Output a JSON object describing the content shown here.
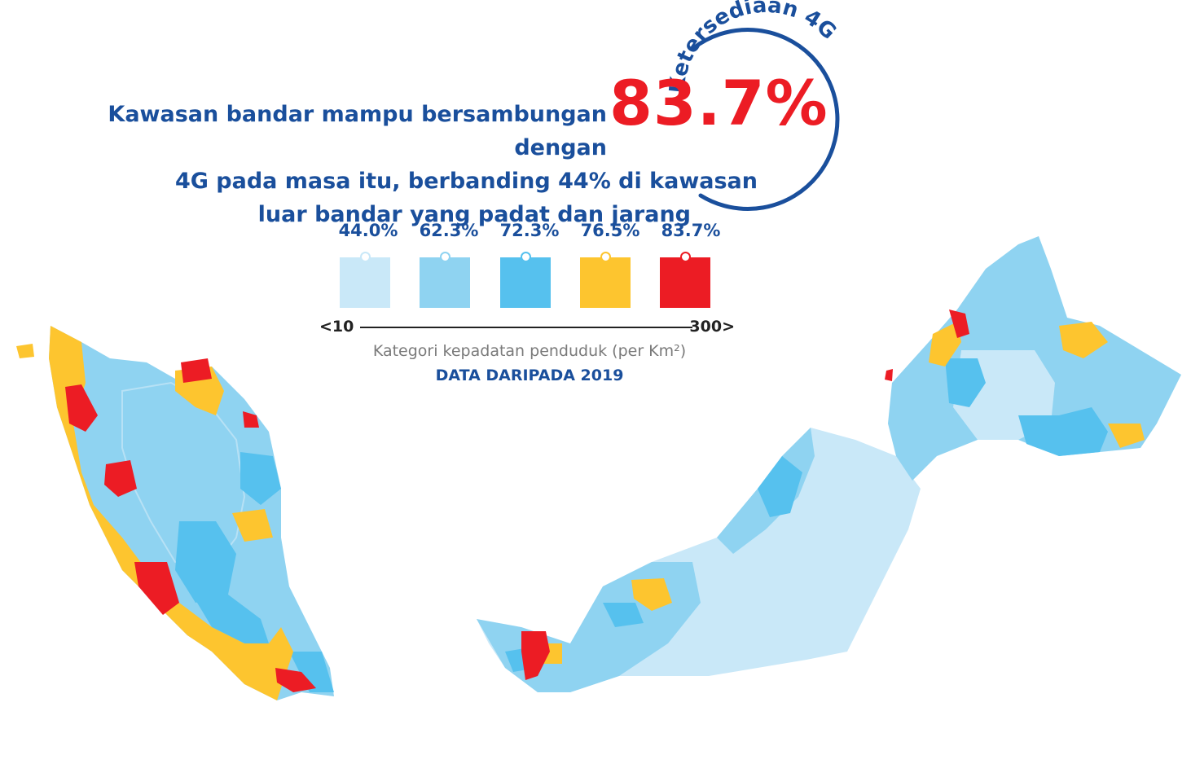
{
  "headline": {
    "line1": "Kawasan bandar mampu bersambungan dengan",
    "line2": "4G pada masa itu, berbanding 44% di kawasan",
    "line3": "luar bandar yang padat dan jarang"
  },
  "highlight_value": "83.7%",
  "ring_label": "Ketersediaan 4G",
  "legend": [
    {
      "value": "44.0%",
      "color": "#c9e8f8"
    },
    {
      "value": "62.3%",
      "color": "#8fd3f1"
    },
    {
      "value": "72.3%",
      "color": "#56c1ee"
    },
    {
      "value": "76.5%",
      "color": "#fdc52f"
    },
    {
      "value": "83.7%",
      "color": "#ec1c24"
    }
  ],
  "scale": {
    "low": "<10",
    "high": "300>"
  },
  "caption": "Kategori kepadatan penduduk (per Km²)",
  "source": "DATA DARIPADA 2019",
  "colors": {
    "title_blue": "#1a4f9c",
    "highlight_red": "#ec1c24"
  }
}
